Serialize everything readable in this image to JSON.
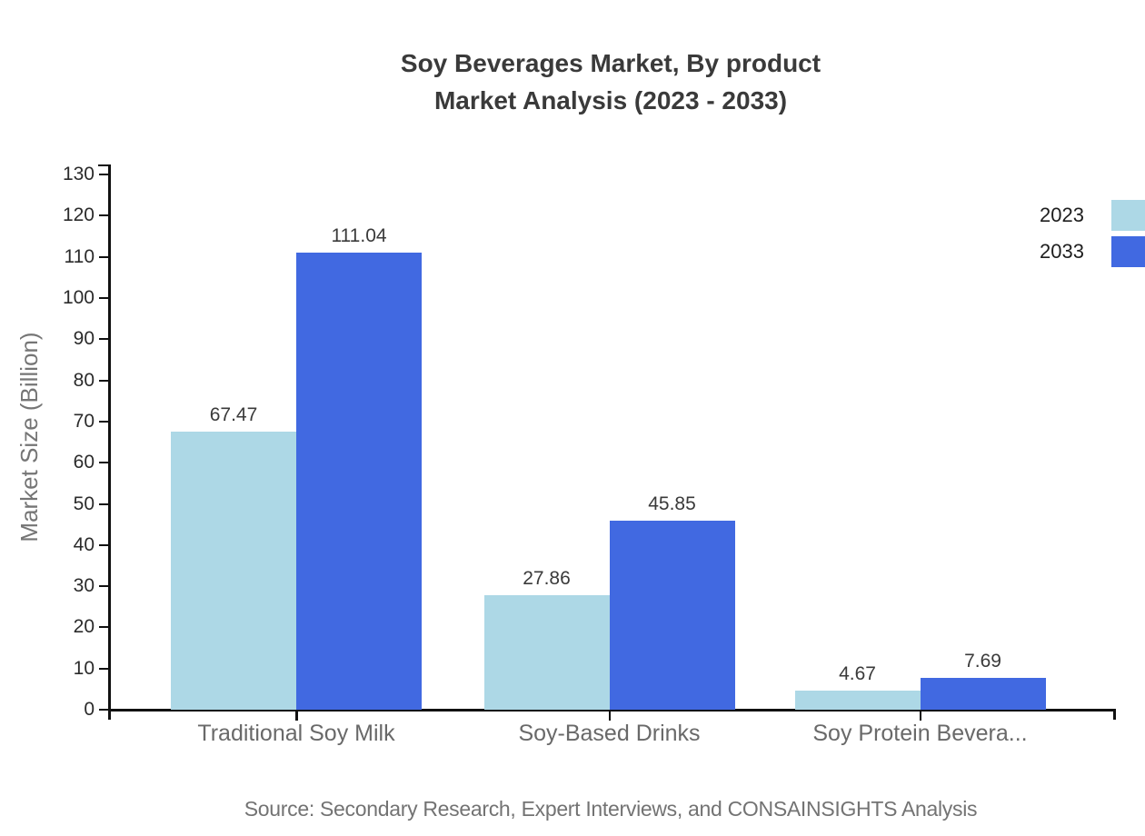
{
  "title": {
    "line1": "Soy Beverages Market, By product",
    "line2": "Market Analysis (2023 - 2033)"
  },
  "source": "Source: Secondary Research, Expert Interviews, and CONSAINSIGHTS Analysis",
  "chart_data": {
    "type": "bar",
    "title": "Soy Beverages Market, By product Market Analysis (2023 - 2033)",
    "categories": [
      "Traditional Soy Milk",
      "Soy-Based Drinks",
      "Soy Protein Bevera..."
    ],
    "series": [
      {
        "name": "2023",
        "color": "#ADD8E6",
        "values": [
          67.47,
          27.86,
          4.67
        ]
      },
      {
        "name": "2033",
        "color": "#4169E1",
        "values": [
          111.04,
          45.85,
          7.69
        ]
      }
    ],
    "xlabel": "",
    "ylabel": "Market Size (Billion)",
    "ylim": [
      0,
      130
    ],
    "ytick_step": 10,
    "value_labels": true,
    "grid": false,
    "legend_position": "top-right",
    "axis_color": "#111111",
    "background": "#ffffff"
  }
}
